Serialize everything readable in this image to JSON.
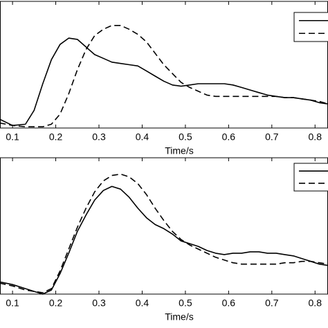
{
  "chart_data": [
    {
      "type": "line",
      "xlabel": "Time/s",
      "x": [
        0.07,
        0.1,
        0.13,
        0.15,
        0.17,
        0.19,
        0.21,
        0.23,
        0.25,
        0.27,
        0.29,
        0.31,
        0.33,
        0.35,
        0.37,
        0.39,
        0.41,
        0.43,
        0.45,
        0.47,
        0.49,
        0.51,
        0.53,
        0.55,
        0.57,
        0.59,
        0.61,
        0.63,
        0.65,
        0.67,
        0.69,
        0.71,
        0.73,
        0.75,
        0.77,
        0.79,
        0.81,
        0.83
      ],
      "xlim": [
        0.071,
        0.83
      ],
      "xticks": [
        0.1,
        0.2,
        0.3,
        0.4,
        0.5,
        0.6,
        0.7,
        0.8
      ],
      "ylim": [
        0,
        1
      ],
      "series": [
        {
          "color": "#000000",
          "dash": "solid",
          "values": [
            0.07,
            0.02,
            0.03,
            0.14,
            0.35,
            0.54,
            0.66,
            0.71,
            0.7,
            0.64,
            0.58,
            0.55,
            0.52,
            0.51,
            0.5,
            0.49,
            0.45,
            0.41,
            0.37,
            0.34,
            0.33,
            0.34,
            0.35,
            0.35,
            0.35,
            0.35,
            0.34,
            0.32,
            0.3,
            0.28,
            0.26,
            0.25,
            0.24,
            0.24,
            0.23,
            0.22,
            0.2,
            0.19
          ]
        },
        {
          "color": "#000000",
          "dash": "dashed",
          "values": [
            0.04,
            0.02,
            0.01,
            0.01,
            0.01,
            0.03,
            0.11,
            0.27,
            0.46,
            0.62,
            0.73,
            0.78,
            0.81,
            0.81,
            0.78,
            0.74,
            0.68,
            0.59,
            0.5,
            0.43,
            0.36,
            0.32,
            0.29,
            0.26,
            0.25,
            0.25,
            0.25,
            0.25,
            0.25,
            0.25,
            0.25,
            0.25,
            0.24,
            0.24,
            0.23,
            0.22,
            0.21,
            0.19
          ]
        }
      ]
    },
    {
      "type": "line",
      "xlabel": "Time/s",
      "x": [
        0.07,
        0.1,
        0.13,
        0.15,
        0.17,
        0.19,
        0.21,
        0.23,
        0.25,
        0.27,
        0.29,
        0.31,
        0.33,
        0.35,
        0.37,
        0.39,
        0.41,
        0.43,
        0.45,
        0.47,
        0.49,
        0.51,
        0.53,
        0.55,
        0.57,
        0.59,
        0.61,
        0.63,
        0.65,
        0.67,
        0.69,
        0.71,
        0.73,
        0.75,
        0.77,
        0.79,
        0.81,
        0.83
      ],
      "xlim": [
        0.071,
        0.83
      ],
      "xticks": [
        0.1,
        0.2,
        0.3,
        0.4,
        0.5,
        0.6,
        0.7,
        0.8
      ],
      "ylim": [
        0,
        1
      ],
      "series": [
        {
          "color": "#000000",
          "dash": "solid",
          "values": [
            0.09,
            0.07,
            0.04,
            0.02,
            0.0,
            0.03,
            0.15,
            0.3,
            0.46,
            0.58,
            0.69,
            0.76,
            0.79,
            0.77,
            0.71,
            0.63,
            0.56,
            0.51,
            0.48,
            0.44,
            0.39,
            0.37,
            0.35,
            0.32,
            0.3,
            0.29,
            0.3,
            0.3,
            0.31,
            0.31,
            0.3,
            0.3,
            0.29,
            0.28,
            0.26,
            0.24,
            0.22,
            0.21
          ]
        },
        {
          "color": "#000000",
          "dash": "dashed",
          "values": [
            0.08,
            0.06,
            0.03,
            0.02,
            0.01,
            0.04,
            0.17,
            0.33,
            0.49,
            0.63,
            0.75,
            0.83,
            0.87,
            0.88,
            0.86,
            0.81,
            0.73,
            0.63,
            0.54,
            0.46,
            0.4,
            0.36,
            0.33,
            0.3,
            0.27,
            0.25,
            0.23,
            0.22,
            0.22,
            0.22,
            0.22,
            0.22,
            0.23,
            0.23,
            0.24,
            0.24,
            0.23,
            0.22
          ]
        }
      ]
    }
  ]
}
